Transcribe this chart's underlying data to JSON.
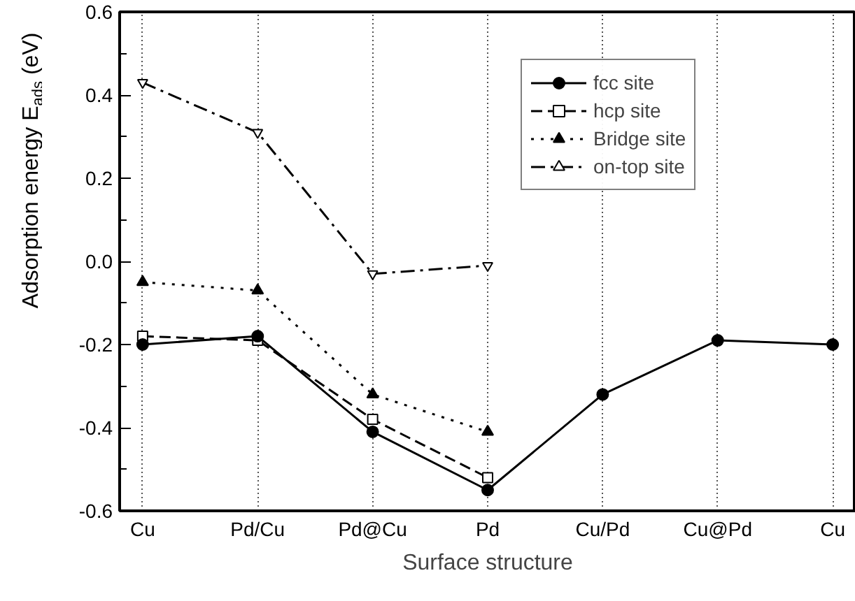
{
  "chart_data": {
    "type": "line",
    "xlabel": "Surface structure",
    "ylabel": "Adsorption energy E$_{ads}$ (eV)",
    "categories": [
      "Cu",
      "Pd/Cu",
      "Pd@Cu",
      "Pd",
      "Cu/Pd",
      "Cu@Pd",
      "Cu"
    ],
    "series": [
      {
        "name": "fcc site",
        "color": "#000000",
        "marker": "circle",
        "line_style": "solid",
        "values": [
          -0.2,
          -0.18,
          -0.41,
          -0.55,
          -0.32,
          -0.19,
          -0.2
        ]
      },
      {
        "name": "hcp site",
        "color": "#000000",
        "marker": "square",
        "line_style": "dashed",
        "values": [
          -0.18,
          -0.19,
          -0.38,
          -0.52,
          null,
          null,
          null
        ]
      },
      {
        "name": "Bridge site",
        "color": "#000000",
        "marker": "triangle",
        "line_style": "dotted",
        "values": [
          -0.05,
          -0.07,
          -0.32,
          -0.41,
          null,
          null,
          null
        ]
      },
      {
        "name": "on-top site",
        "color": "#000000",
        "marker": "triangle",
        "line_style": "dashdot",
        "values": [
          0.43,
          0.31,
          -0.03,
          -0.01,
          null,
          null,
          null
        ]
      }
    ],
    "ylim": [
      -0.6,
      0.6
    ],
    "yticks": [
      -0.6,
      -0.4,
      -0.2,
      {
        "value": 0,
        "label": "0.0"
      },
      0.2,
      0.4,
      0.6
    ],
    "grid": "x",
    "legend": "top right"
  }
}
